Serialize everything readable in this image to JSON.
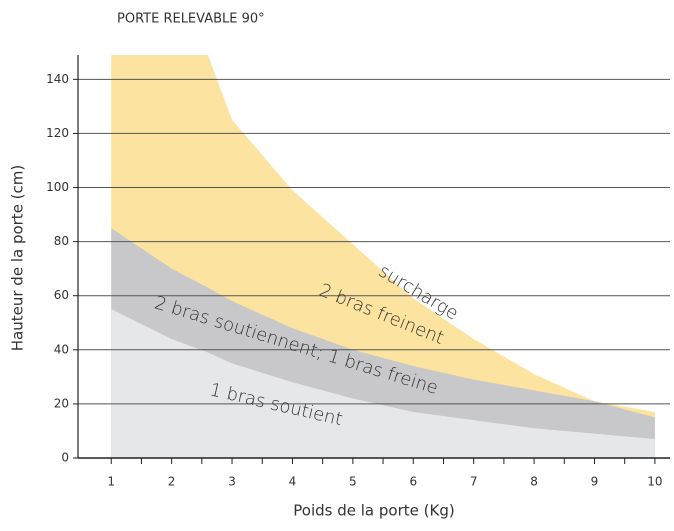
{
  "chart_data": {
    "type": "area",
    "title": "PORTE RELEVABLE 90°",
    "xlabel": "Poids de la porte (Kg)",
    "ylabel": "Hauteur de la porte (cm)",
    "x": [
      1,
      2,
      2.6,
      3,
      4,
      5,
      6,
      7,
      8,
      9,
      10
    ],
    "series": [
      {
        "color": "#fde3a0",
        "values": [
          149,
          149,
          149,
          125,
          99,
          79,
          59,
          44,
          31,
          21,
          17
        ]
      },
      {
        "color": "#c8c8ca",
        "values": [
          85,
          70,
          63,
          58,
          48,
          40,
          34,
          29,
          25,
          21,
          15
        ]
      },
      {
        "color": "#e6e7e9",
        "values": [
          55,
          44,
          39,
          35,
          28,
          22,
          17,
          14,
          11,
          9,
          7
        ]
      }
    ],
    "annotations": [
      "surcharge",
      "2 bras freinent",
      "2 bras soutiennent; 1 bras freine",
      "1 bras soutient"
    ],
    "xlim": [
      0.45,
      10.25
    ],
    "ylim": [
      0,
      149
    ],
    "xticks": [
      1,
      2,
      3,
      4,
      5,
      6,
      7,
      8,
      9,
      10
    ],
    "yticks": [
      0,
      20,
      40,
      60,
      80,
      100,
      120,
      140
    ],
    "grid": true
  }
}
